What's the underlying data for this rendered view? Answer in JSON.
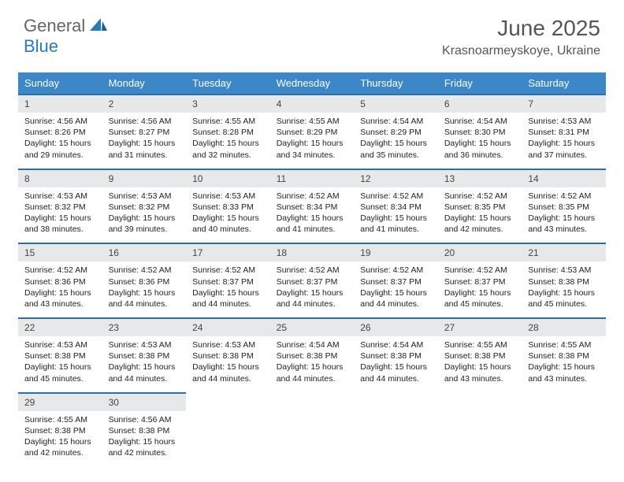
{
  "brand": {
    "part1": "General",
    "part2": "Blue"
  },
  "title": "June 2025",
  "location": "Krasnoarmeyskoye, Ukraine",
  "colors": {
    "header_bg": "#3b87c8",
    "header_text": "#ffffff",
    "border": "#2a6fa8",
    "daynum_bg": "#e7e8ea",
    "body_text": "#222222",
    "title_text": "#555555"
  },
  "weekdays": [
    "Sunday",
    "Monday",
    "Tuesday",
    "Wednesday",
    "Thursday",
    "Friday",
    "Saturday"
  ],
  "weeks": [
    [
      {
        "n": "1",
        "sr": "4:56 AM",
        "ss": "8:26 PM",
        "dl": "15 hours and 29 minutes."
      },
      {
        "n": "2",
        "sr": "4:56 AM",
        "ss": "8:27 PM",
        "dl": "15 hours and 31 minutes."
      },
      {
        "n": "3",
        "sr": "4:55 AM",
        "ss": "8:28 PM",
        "dl": "15 hours and 32 minutes."
      },
      {
        "n": "4",
        "sr": "4:55 AM",
        "ss": "8:29 PM",
        "dl": "15 hours and 34 minutes."
      },
      {
        "n": "5",
        "sr": "4:54 AM",
        "ss": "8:29 PM",
        "dl": "15 hours and 35 minutes."
      },
      {
        "n": "6",
        "sr": "4:54 AM",
        "ss": "8:30 PM",
        "dl": "15 hours and 36 minutes."
      },
      {
        "n": "7",
        "sr": "4:53 AM",
        "ss": "8:31 PM",
        "dl": "15 hours and 37 minutes."
      }
    ],
    [
      {
        "n": "8",
        "sr": "4:53 AM",
        "ss": "8:32 PM",
        "dl": "15 hours and 38 minutes."
      },
      {
        "n": "9",
        "sr": "4:53 AM",
        "ss": "8:32 PM",
        "dl": "15 hours and 39 minutes."
      },
      {
        "n": "10",
        "sr": "4:53 AM",
        "ss": "8:33 PM",
        "dl": "15 hours and 40 minutes."
      },
      {
        "n": "11",
        "sr": "4:52 AM",
        "ss": "8:34 PM",
        "dl": "15 hours and 41 minutes."
      },
      {
        "n": "12",
        "sr": "4:52 AM",
        "ss": "8:34 PM",
        "dl": "15 hours and 41 minutes."
      },
      {
        "n": "13",
        "sr": "4:52 AM",
        "ss": "8:35 PM",
        "dl": "15 hours and 42 minutes."
      },
      {
        "n": "14",
        "sr": "4:52 AM",
        "ss": "8:35 PM",
        "dl": "15 hours and 43 minutes."
      }
    ],
    [
      {
        "n": "15",
        "sr": "4:52 AM",
        "ss": "8:36 PM",
        "dl": "15 hours and 43 minutes."
      },
      {
        "n": "16",
        "sr": "4:52 AM",
        "ss": "8:36 PM",
        "dl": "15 hours and 44 minutes."
      },
      {
        "n": "17",
        "sr": "4:52 AM",
        "ss": "8:37 PM",
        "dl": "15 hours and 44 minutes."
      },
      {
        "n": "18",
        "sr": "4:52 AM",
        "ss": "8:37 PM",
        "dl": "15 hours and 44 minutes."
      },
      {
        "n": "19",
        "sr": "4:52 AM",
        "ss": "8:37 PM",
        "dl": "15 hours and 44 minutes."
      },
      {
        "n": "20",
        "sr": "4:52 AM",
        "ss": "8:37 PM",
        "dl": "15 hours and 45 minutes."
      },
      {
        "n": "21",
        "sr": "4:53 AM",
        "ss": "8:38 PM",
        "dl": "15 hours and 45 minutes."
      }
    ],
    [
      {
        "n": "22",
        "sr": "4:53 AM",
        "ss": "8:38 PM",
        "dl": "15 hours and 45 minutes."
      },
      {
        "n": "23",
        "sr": "4:53 AM",
        "ss": "8:38 PM",
        "dl": "15 hours and 44 minutes."
      },
      {
        "n": "24",
        "sr": "4:53 AM",
        "ss": "8:38 PM",
        "dl": "15 hours and 44 minutes."
      },
      {
        "n": "25",
        "sr": "4:54 AM",
        "ss": "8:38 PM",
        "dl": "15 hours and 44 minutes."
      },
      {
        "n": "26",
        "sr": "4:54 AM",
        "ss": "8:38 PM",
        "dl": "15 hours and 44 minutes."
      },
      {
        "n": "27",
        "sr": "4:55 AM",
        "ss": "8:38 PM",
        "dl": "15 hours and 43 minutes."
      },
      {
        "n": "28",
        "sr": "4:55 AM",
        "ss": "8:38 PM",
        "dl": "15 hours and 43 minutes."
      }
    ],
    [
      {
        "n": "29",
        "sr": "4:55 AM",
        "ss": "8:38 PM",
        "dl": "15 hours and 42 minutes."
      },
      {
        "n": "30",
        "sr": "4:56 AM",
        "ss": "8:38 PM",
        "dl": "15 hours and 42 minutes."
      },
      null,
      null,
      null,
      null,
      null
    ]
  ],
  "labels": {
    "sunrise": "Sunrise:",
    "sunset": "Sunset:",
    "daylight": "Daylight:"
  }
}
